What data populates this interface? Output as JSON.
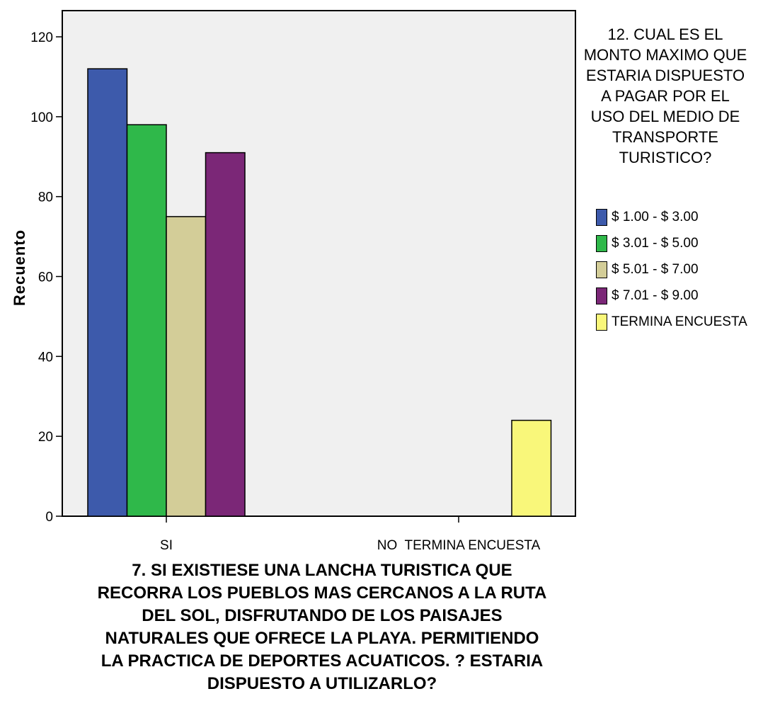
{
  "legend": {
    "title": "12. CUAL ES EL MONTO MAXIMO QUE ESTARIA DISPUESTO A PAGAR POR EL USO DEL MEDIO DE TRANSPORTE TURISTICO?",
    "title_lines": [
      "12. CUAL ES EL",
      "MONTO MAXIMO QUE",
      "ESTARIA DISPUESTO",
      "A PAGAR POR EL",
      "USO DEL MEDIO DE",
      "TRANSPORTE",
      "TURISTICO?"
    ],
    "placement": "right"
  },
  "xlabel_lines": [
    "7. SI EXISTIESE UNA LANCHA TURISTICA QUE",
    "RECORRA LOS PUEBLOS MAS CERCANOS A LA RUTA",
    "DEL SOL, DISFRUTANDO DE LOS PAISAJES",
    "NATURALES QUE OFRECE LA PLAYA. PERMITIENDO",
    "LA PRACTICA DE DEPORTES ACUATICOS. ? ESTARIA",
    "DISPUESTO A UTILIZARLO?"
  ],
  "chart_data": {
    "type": "bar",
    "xlabel": "7. SI EXISTIESE UNA LANCHA TURISTICA QUE RECORRA LOS PUEBLOS MAS CERCANOS A LA RUTA DEL SOL, DISFRUTANDO DE LOS PAISAJES NATURALES QUE OFRECE LA PLAYA. PERMITIENDO LA PRACTICA DE DEPORTES ACUATICOS. ? ESTARIA DISPUESTO A UTILIZARLO?",
    "ylabel": "Recuento",
    "categories": [
      "SI",
      "NO  TERMINA ENCUESTA"
    ],
    "series": [
      {
        "name": "$ 1.00 - $ 3.00",
        "color": "#3d5aab",
        "values": [
          112,
          0
        ]
      },
      {
        "name": "$ 3.01 - $ 5.00",
        "color": "#2fb84a",
        "values": [
          98,
          0
        ]
      },
      {
        "name": "$ 5.01 - $ 7.00",
        "color": "#d3cd98",
        "values": [
          75,
          0
        ]
      },
      {
        "name": "$ 7.01 - $ 9.00",
        "color": "#7b2777",
        "values": [
          91,
          0
        ]
      },
      {
        "name": "TERMINA ENCUESTA",
        "color": "#f9f77a",
        "values": [
          0,
          24
        ]
      }
    ],
    "yticks": [
      0,
      20,
      40,
      60,
      80,
      100,
      120
    ],
    "ylim": [
      0,
      124
    ],
    "grid": false,
    "plot_background": "#f0f0f0"
  }
}
